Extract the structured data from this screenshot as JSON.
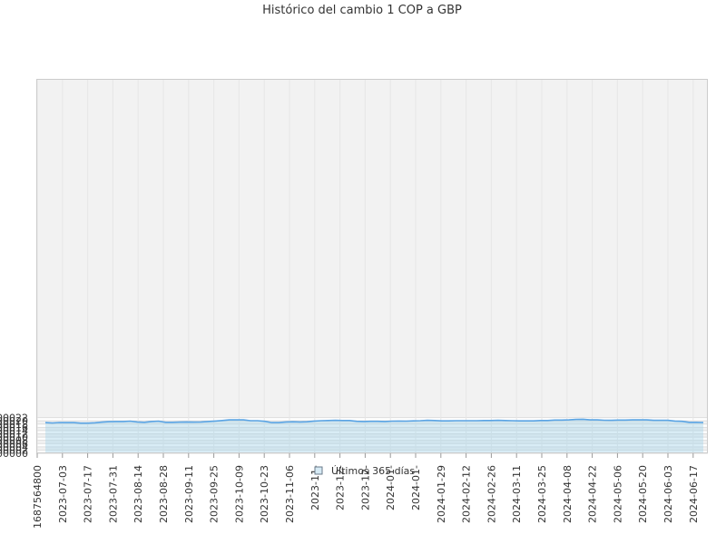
{
  "chart_data": {
    "type": "area",
    "title": "Histórico del cambio 1 COP a GBP",
    "xlabel": "",
    "ylabel": "",
    "ylim": [
      0,
      0.00023
    ],
    "y_ticks": [
      "0.000000",
      "0.000002",
      "0.000004",
      "0.000006",
      "0.000008",
      "0.000010",
      "0.000012",
      "0.000014",
      "0.000016",
      "0.000018",
      "0.000020",
      "0.000022"
    ],
    "x_ticks": [
      "1687564800",
      "2023-07-03",
      "2023-07-17",
      "2023-07-31",
      "2023-08-14",
      "2023-08-28",
      "2023-09-11",
      "2023-09-25",
      "2023-10-09",
      "2023-10-23",
      "2023-11-06",
      "2023-11-",
      "2023-12-",
      "2023-12-",
      "2024-01-",
      "2024-01-",
      "2024-01-29",
      "2024-02-12",
      "2024-02-26",
      "2024-03-11",
      "2024-03-25",
      "2024-04-08",
      "2024-04-22",
      "2024-05-06",
      "2024-05-20",
      "2024-06-03",
      "2024-06-17"
    ],
    "grid": true,
    "legend_position": "bottom",
    "series": [
      {
        "name": "Últimos 365 días",
        "color": "#5aa4e4",
        "fill": "#a8d4e8",
        "values": [
          1.89e-05,
          1.87e-05,
          1.9e-05,
          1.89e-05,
          1.89e-05,
          1.86e-05,
          1.86e-05,
          1.88e-05,
          1.92e-05,
          1.95e-05,
          1.96e-05,
          1.96e-05,
          1.98e-05,
          1.93e-05,
          1.91e-05,
          1.96e-05,
          1.98e-05,
          1.91e-05,
          1.91e-05,
          1.92e-05,
          1.93e-05,
          1.92e-05,
          1.93e-05,
          1.96e-05,
          1.99e-05,
          2.02e-05,
          2.06e-05,
          2.06e-05,
          2.06e-05,
          2.01e-05,
          2.01e-05,
          1.97e-05,
          1.89e-05,
          1.89e-05,
          1.93e-05,
          1.94e-05,
          1.93e-05,
          1.94e-05,
          1.99e-05,
          2.01e-05,
          2.02e-05,
          2.03e-05,
          2.02e-05,
          2.02e-05,
          1.97e-05,
          1.96e-05,
          1.97e-05,
          1.97e-05,
          1.96e-05,
          1.98e-05,
          1.99e-05,
          1.98e-05,
          2e-05,
          2.01e-05,
          2.03e-05,
          2.02e-05,
          2e-05,
          2e-05,
          2.01e-05,
          2.01e-05,
          2.01e-05,
          2.01e-05,
          2.02e-05,
          2.02e-05,
          2.03e-05,
          2.02e-05,
          2.01e-05,
          2e-05,
          2e-05,
          2e-05,
          2.02e-05,
          2.02e-05,
          2.05e-05,
          2.05e-05,
          2.06e-05,
          2.09e-05,
          2.1e-05,
          2.06e-05,
          2.06e-05,
          2.04e-05,
          2.03e-05,
          2.05e-05,
          2.05e-05,
          2.06e-05,
          2.06e-05,
          2.06e-05,
          2.03e-05,
          2.03e-05,
          2.03e-05,
          1.99e-05,
          1.97e-05,
          1.91e-05,
          1.91e-05,
          1.9e-05
        ]
      }
    ]
  }
}
